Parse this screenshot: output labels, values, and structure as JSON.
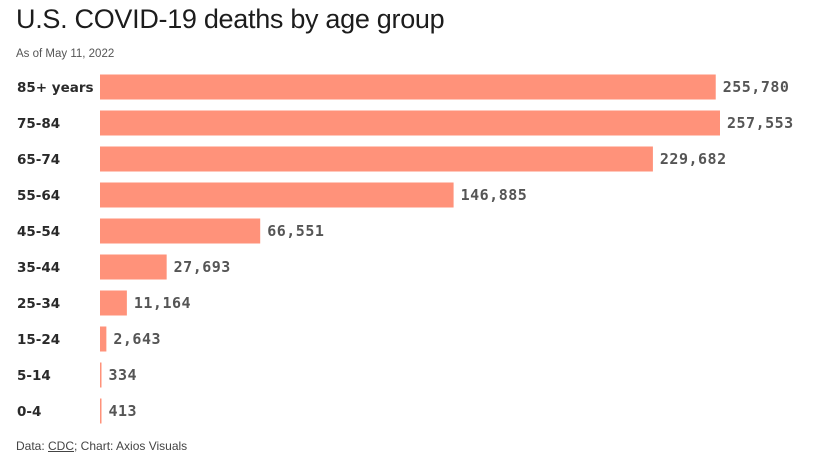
{
  "chart_data": {
    "type": "bar",
    "orientation": "horizontal",
    "title": "U.S. COVID-19 deaths by age group",
    "subtitle": "As of May 11, 2022",
    "categories": [
      "85+ years",
      "75-84",
      "65-74",
      "55-64",
      "45-54",
      "35-44",
      "25-34",
      "15-24",
      "5-14",
      "0-4"
    ],
    "values": [
      255780,
      257553,
      229682,
      146885,
      66551,
      27693,
      11164,
      2643,
      334,
      413
    ],
    "value_labels": [
      "255,780",
      "257,553",
      "229,682",
      "146,885",
      "66,551",
      "27,693",
      "11,164",
      "2,643",
      "334",
      "413"
    ],
    "xlim": [
      0,
      257553
    ],
    "grid": false,
    "bar_color": "#ff927a"
  },
  "footer": {
    "data_prefix": "Data: ",
    "source_link": "CDC",
    "credit": "; Chart: Axios Visuals"
  }
}
